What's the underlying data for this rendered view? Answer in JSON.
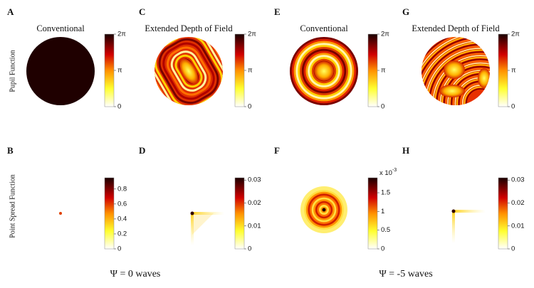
{
  "row_labels": [
    "Pupil Function",
    "Point Spread Function"
  ],
  "panels": [
    {
      "label": "A",
      "title": "Conventional",
      "colorbar": {
        "min": 0,
        "max": 6.28318,
        "ticks": [
          {
            "value": 0,
            "label": "0"
          },
          {
            "value": 3.14159,
            "label": "π"
          },
          {
            "value": 6.28318,
            "label": "2π"
          }
        ]
      }
    },
    {
      "label": "B",
      "colorbar": {
        "min": 0,
        "max": 0.95,
        "ticks": [
          {
            "value": 0,
            "label": "0"
          },
          {
            "value": 0.2,
            "label": "0.2"
          },
          {
            "value": 0.4,
            "label": "0.4"
          },
          {
            "value": 0.6,
            "label": "0.6"
          },
          {
            "value": 0.8,
            "label": "0.8"
          }
        ]
      }
    },
    {
      "label": "C",
      "title": "Extended Depth of Field",
      "colorbar": {
        "min": 0,
        "max": 6.28318,
        "ticks": [
          {
            "value": 0,
            "label": "0"
          },
          {
            "value": 3.14159,
            "label": "π"
          },
          {
            "value": 6.28318,
            "label": "2π"
          }
        ]
      }
    },
    {
      "label": "D",
      "colorbar": {
        "min": 0,
        "max": 0.031,
        "ticks": [
          {
            "value": 0,
            "label": "0"
          },
          {
            "value": 0.01,
            "label": "0.01"
          },
          {
            "value": 0.02,
            "label": "0.02"
          },
          {
            "value": 0.03,
            "label": "0.03"
          }
        ]
      }
    },
    {
      "label": "E",
      "title": "Conventional",
      "colorbar": {
        "min": 0,
        "max": 6.28318,
        "ticks": [
          {
            "value": 0,
            "label": "0"
          },
          {
            "value": 3.14159,
            "label": "π"
          },
          {
            "value": 6.28318,
            "label": "2π"
          }
        ]
      }
    },
    {
      "label": "F",
      "colorbar": {
        "min": 0,
        "max": 1.9,
        "multiplier": {
          "base": "x 10",
          "exponent": "-3"
        },
        "ticks": [
          {
            "value": 0,
            "label": "0"
          },
          {
            "value": 0.5,
            "label": "0.5"
          },
          {
            "value": 1,
            "label": "1"
          },
          {
            "value": 1.5,
            "label": "1.5"
          }
        ]
      }
    },
    {
      "label": "G",
      "title": "Extended Depth of Field",
      "colorbar": {
        "min": 0,
        "max": 6.28318,
        "ticks": [
          {
            "value": 0,
            "label": "0"
          },
          {
            "value": 3.14159,
            "label": "π"
          },
          {
            "value": 6.28318,
            "label": "2π"
          }
        ]
      }
    },
    {
      "label": "H",
      "colorbar": {
        "min": 0,
        "max": 0.031,
        "ticks": [
          {
            "value": 0,
            "label": "0"
          },
          {
            "value": 0.01,
            "label": "0.01"
          },
          {
            "value": 0.02,
            "label": "0.02"
          },
          {
            "value": 0.03,
            "label": "0.03"
          }
        ]
      }
    }
  ],
  "captions": [
    "Ψ = 0 waves",
    "Ψ = -5 waves"
  ]
}
